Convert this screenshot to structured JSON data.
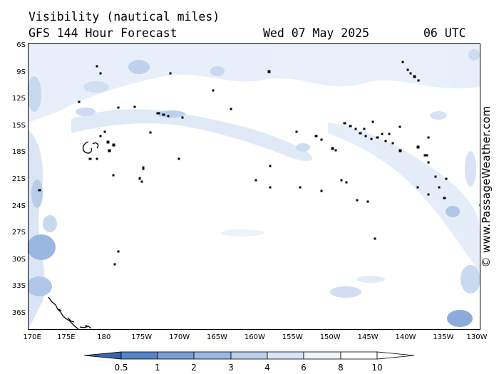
{
  "header": {
    "title": "Visibility (nautical miles)",
    "subtitle": "GFS 144 Hour Forecast",
    "date": "Wed 07 May 2025",
    "time": "06 UTC"
  },
  "map": {
    "lat_labels": [
      "6S",
      "9S",
      "12S",
      "15S",
      "18S",
      "21S",
      "24S",
      "27S",
      "30S",
      "33S",
      "36S"
    ],
    "lon_labels": [
      "170E",
      "175E",
      "180",
      "175W",
      "170W",
      "165W",
      "160W",
      "155W",
      "150W",
      "145W",
      "140W",
      "135W",
      "130W"
    ]
  },
  "legend": {
    "levels": [
      "0.5",
      "1",
      "2",
      "3",
      "4",
      "6",
      "8",
      "10"
    ],
    "colors": [
      "#3e6fb5",
      "#5585c6",
      "#7a9fd5",
      "#9ab8e2",
      "#bcd0ec",
      "#d9e5f5",
      "#eef3fb",
      "#ffffff"
    ]
  },
  "credit": "© www.PassageWeather.com"
}
